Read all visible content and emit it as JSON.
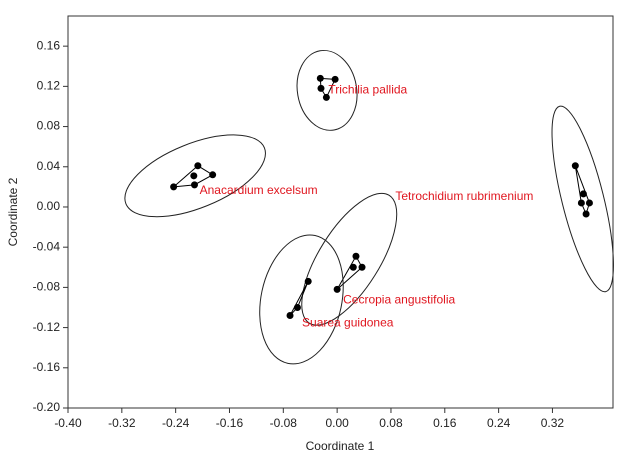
{
  "chart_data": {
    "type": "scatter",
    "x_label": "Coordinate 1",
    "y_label": "Coordinate 2",
    "xlim": [
      -0.4,
      0.41
    ],
    "ylim": [
      -0.2,
      0.19
    ],
    "xticks": [
      {
        "value": -0.4,
        "label": "-0.40"
      },
      -0.32,
      -0.24,
      -0.16,
      -0.08,
      {
        "value": 0,
        "label": "0.00"
      },
      0.08,
      0.16,
      0.24,
      0.32
    ],
    "yticks": [
      {
        "value": -0.2,
        "label": "-0.20"
      },
      -0.16,
      -0.12,
      -0.08,
      -0.04,
      {
        "value": 0,
        "label": "0.00"
      },
      0.04,
      0.08,
      0.12,
      0.16
    ],
    "grid": false,
    "label_color": "#e0161f",
    "series": [
      {
        "name": "Trichilia pallida",
        "color": "#000000",
        "x": [
          -0.025,
          -0.003,
          -0.024,
          -0.016
        ],
        "y": [
          0.128,
          0.127,
          0.118,
          0.109
        ],
        "ellipse": {
          "cx": -0.015,
          "cy": 0.116,
          "rx": 0.044,
          "ry": 0.04,
          "angle": -10
        }
      },
      {
        "name": "Anacardium excelsum",
        "color": "#000000",
        "x": [
          -0.243,
          -0.213,
          -0.207,
          -0.185,
          -0.212
        ],
        "y": [
          0.02,
          0.031,
          0.041,
          0.032,
          0.022
        ],
        "ellipse": {
          "cx": -0.211,
          "cy": 0.031,
          "rx": 0.111,
          "ry": 0.032,
          "angle": -22
        }
      },
      {
        "name": "Tetrochidium rubrimenium",
        "color": "#000000",
        "x": [
          0.354,
          0.366,
          0.363,
          0.375,
          0.37
        ],
        "y": [
          0.041,
          0.013,
          0.004,
          0.004,
          -0.007
        ],
        "ellipse": {
          "cx": 0.365,
          "cy": 0.008,
          "rx": 0.031,
          "ry": 0.095,
          "angle": -14
        }
      },
      {
        "name": "Cecropia angustifolia",
        "color": "#000000",
        "x": [
          0.0,
          0.024,
          0.028,
          0.037
        ],
        "y": [
          -0.082,
          -0.06,
          -0.049,
          -0.06
        ],
        "ellipse": {
          "cx": 0.018,
          "cy": -0.052,
          "rx": 0.045,
          "ry": 0.075,
          "angle": 32
        }
      },
      {
        "name": "Suarea guidonea",
        "color": "#000000",
        "x": [
          -0.07,
          -0.059,
          -0.043
        ],
        "y": [
          -0.108,
          -0.1,
          -0.074
        ],
        "ellipse": {
          "cx": -0.053,
          "cy": -0.092,
          "rx": 0.06,
          "ry": 0.065,
          "angle": 12
        }
      }
    ]
  }
}
